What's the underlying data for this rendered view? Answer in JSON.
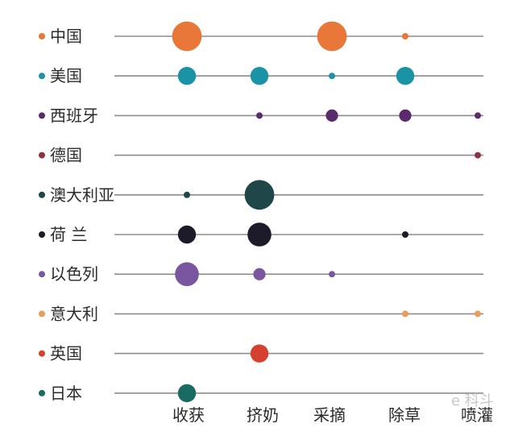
{
  "chart_data": {
    "type": "scatter",
    "title": "",
    "xlabel": "",
    "ylabel": "",
    "columns": [
      "收获",
      "挤奶",
      "采摘",
      "除草",
      "喷灌"
    ],
    "rows": [
      {
        "name": "中国",
        "color": "#e9773a",
        "points": [
          {
            "col": "收获",
            "size": 3
          },
          {
            "col": "采摘",
            "size": 3
          },
          {
            "col": "除草",
            "size": 1
          }
        ]
      },
      {
        "name": "美国",
        "color": "#1a93a6",
        "points": [
          {
            "col": "收获",
            "size": 2
          },
          {
            "col": "挤奶",
            "size": 2
          },
          {
            "col": "采摘",
            "size": 1
          },
          {
            "col": "除草",
            "size": 2
          }
        ]
      },
      {
        "name": "西班牙",
        "color": "#5a2a6e",
        "points": [
          {
            "col": "挤奶",
            "size": 1
          },
          {
            "col": "采摘",
            "size": 1.5
          },
          {
            "col": "除草",
            "size": 1.5
          },
          {
            "col": "喷灌",
            "size": 1
          }
        ]
      },
      {
        "name": "德国",
        "color": "#8b3340",
        "points": [
          {
            "col": "喷灌",
            "size": 1
          }
        ]
      },
      {
        "name": "澳大利亚",
        "color": "#1f4648",
        "points": [
          {
            "col": "收获",
            "size": 1
          },
          {
            "col": "挤奶",
            "size": 3
          }
        ]
      },
      {
        "name": "荷 兰",
        "color": "#1d1a2a",
        "points": [
          {
            "col": "收获",
            "size": 2
          },
          {
            "col": "挤奶",
            "size": 2.5
          },
          {
            "col": "除草",
            "size": 1
          }
        ]
      },
      {
        "name": "以色列",
        "color": "#7b56a0",
        "points": [
          {
            "col": "收获",
            "size": 2.5
          },
          {
            "col": "挤奶",
            "size": 1.5
          },
          {
            "col": "采摘",
            "size": 1
          }
        ]
      },
      {
        "name": "意大利",
        "color": "#e3a05a",
        "points": [
          {
            "col": "除草",
            "size": 1
          },
          {
            "col": "喷灌",
            "size": 1
          }
        ]
      },
      {
        "name": "英国",
        "color": "#d6402f",
        "points": [
          {
            "col": "挤奶",
            "size": 2
          }
        ]
      },
      {
        "name": "日本",
        "color": "#1a6a64",
        "points": [
          {
            "col": "收获",
            "size": 2
          }
        ]
      }
    ],
    "grid": false,
    "legend": "none"
  },
  "watermark": "e 科斗"
}
